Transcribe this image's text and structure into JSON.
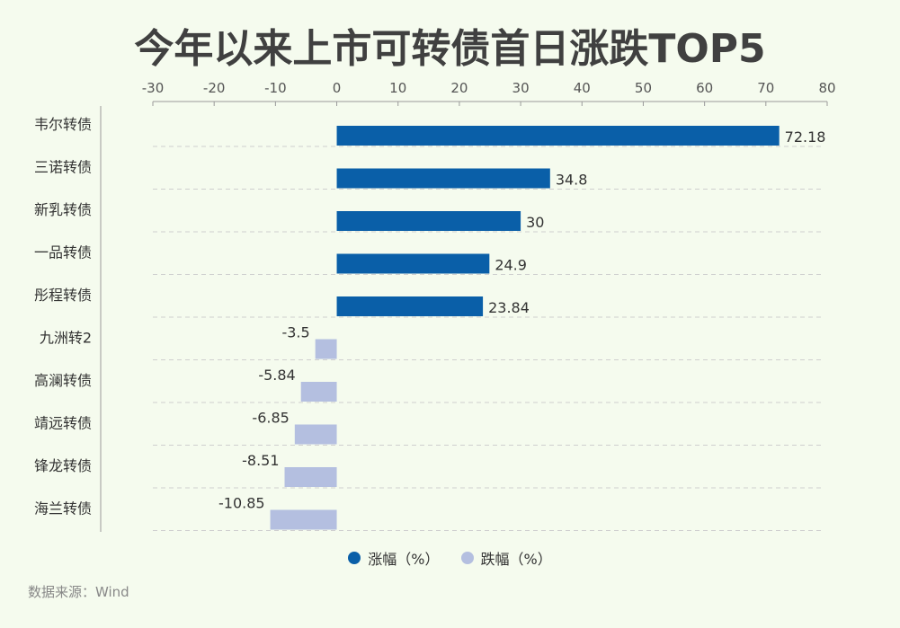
{
  "chart_data": {
    "type": "bar",
    "orientation": "horizontal",
    "title": "今年以来上市可转债首日涨跌TOP5",
    "categories": [
      "韦尔转债",
      "三诺转债",
      "新乳转债",
      "一品转债",
      "彤程转债",
      "九洲转2",
      "高澜转债",
      "靖远转债",
      "锋龙转债",
      "海兰转债"
    ],
    "values": [
      72.18,
      34.8,
      30,
      24.9,
      23.84,
      -3.5,
      -5.84,
      -6.85,
      -8.51,
      -10.85
    ],
    "value_labels": [
      "72.18",
      "34.8",
      "30",
      "24.9",
      "23.84",
      "-3.5",
      "-5.84",
      "-6.85",
      "-8.51",
      "-10.85"
    ],
    "series": [
      {
        "name": "涨幅（%）",
        "color": "#0a5fa8"
      },
      {
        "name": "跌幅（%）",
        "color": "#b4bfe0"
      }
    ],
    "xlim": [
      -30,
      80
    ],
    "x_ticks": [
      -30,
      -20,
      -10,
      0,
      10,
      20,
      30,
      40,
      50,
      60,
      70,
      80
    ],
    "x_axis_position": "top",
    "grid": "horizontal-dashed",
    "legend_position": "bottom"
  },
  "source": "数据来源：Wind"
}
